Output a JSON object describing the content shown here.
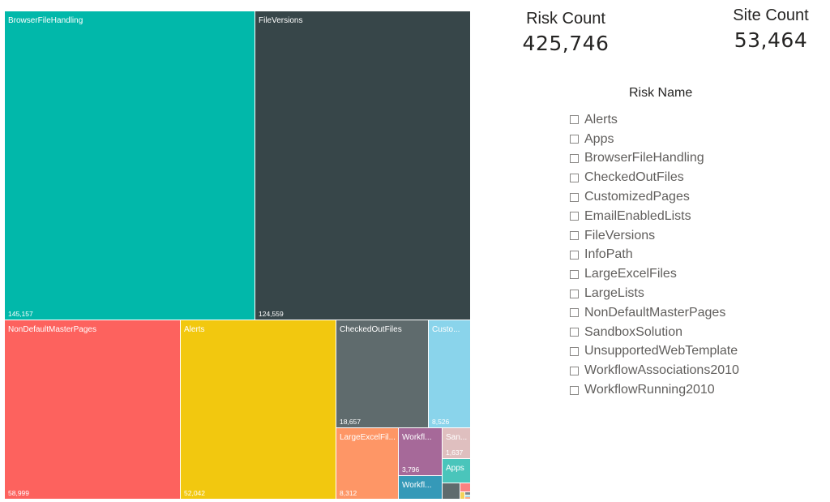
{
  "kpis": {
    "risk": {
      "title": "Risk Count",
      "value": "425,746"
    },
    "site": {
      "title": "Site Count",
      "value": "53,464"
    }
  },
  "slicer": {
    "title": "Risk Name",
    "items": [
      "Alerts",
      "Apps",
      "BrowserFileHandling",
      "CheckedOutFiles",
      "CustomizedPages",
      "EmailEnabledLists",
      "FileVersions",
      "InfoPath",
      "LargeExcelFiles",
      "LargeLists",
      "NonDefaultMasterPages",
      "SandboxSolution",
      "UnsupportedWebTemplate",
      "WorkflowAssociations2010",
      "WorkflowRunning2010"
    ]
  },
  "chart_data": {
    "type": "treemap",
    "items": [
      {
        "label": "BrowserFileHandling",
        "value": 145157,
        "value_text": "145,157",
        "color": "#01B8AA"
      },
      {
        "label": "FileVersions",
        "value": 124559,
        "value_text": "124,559",
        "color": "#374649"
      },
      {
        "label": "NonDefaultMasterPages",
        "value": 58999,
        "value_text": "58,999",
        "color": "#FD625E"
      },
      {
        "label": "Alerts",
        "value": 52042,
        "value_text": "52,042",
        "color": "#F2C80F"
      },
      {
        "label": "CheckedOutFiles",
        "value": 18657,
        "value_text": "18,657",
        "color": "#5F6B6D"
      },
      {
        "label": "Custo...",
        "value": 8526,
        "value_text": "8,526",
        "color": "#8AD4EB"
      },
      {
        "label": "LargeExcelFil...",
        "value": 8312,
        "value_text": "8,312",
        "color": "#FE9666"
      },
      {
        "label": "Workfl...",
        "value": 3796,
        "value_text": "3,796",
        "color": "#A66999"
      },
      {
        "label": "Workfl...",
        "value": null,
        "value_text": "",
        "color": "#3599B8"
      },
      {
        "label": "San...",
        "value": 1637,
        "value_text": "1,637",
        "color": "#DFBFBF"
      },
      {
        "label": "Apps",
        "value": null,
        "value_text": "",
        "color": "#4AC5BB"
      },
      {
        "label": "",
        "value": null,
        "value_text": "",
        "color": "#5F6B6D"
      },
      {
        "label": "",
        "value": null,
        "value_text": "",
        "color": "#FB8281"
      },
      {
        "label": "",
        "value": null,
        "value_text": "",
        "color": "#F4D25A"
      },
      {
        "label": "",
        "value": null,
        "value_text": "",
        "color": "#7F898A"
      },
      {
        "label": "",
        "value": null,
        "value_text": "",
        "color": "#A4DDEE"
      },
      {
        "label": "",
        "value": null,
        "value_text": "",
        "color": "#FDAB89"
      }
    ]
  }
}
